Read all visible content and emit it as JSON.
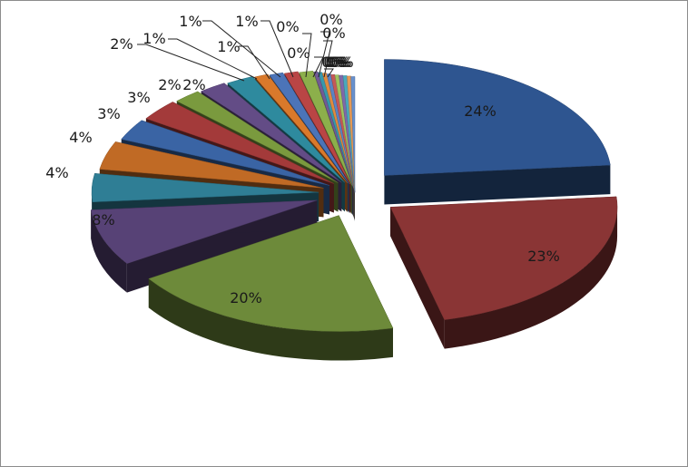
{
  "chart_data": {
    "type": "pie",
    "title": "",
    "style": "3d-exploded",
    "values": [
      24,
      23,
      20,
      8,
      4,
      4,
      3,
      3,
      2,
      2,
      2,
      1,
      1,
      1,
      1,
      0,
      0,
      0,
      0,
      0,
      0,
      0,
      0,
      0,
      0
    ],
    "labels": [
      "24%",
      "23%",
      "20%",
      "8%",
      "4%",
      "4%",
      "3%",
      "3%",
      "2%",
      "2%",
      "2%",
      "1%",
      "1%",
      "1%",
      "1%",
      "0%",
      "0%",
      "0%",
      "0%",
      "0%",
      "0%",
      "0%",
      "0%",
      "0%",
      "0%"
    ],
    "colors": [
      "#2e5590",
      "#8a3535",
      "#6d8a3a",
      "#574276",
      "#2f7e95",
      "#c06a25",
      "#3a64a4",
      "#a33a3a",
      "#7a9a3e",
      "#634c86",
      "#2e8a9e",
      "#d9792b",
      "#4c74b8",
      "#b94545",
      "#8caf4b",
      "#725a95",
      "#3798ad",
      "#e08a3e",
      "#5a84c4",
      "#c45858",
      "#9ec15e",
      "#8068a8",
      "#4aa8bc",
      "#e59a56",
      "#6890cc"
    ]
  }
}
